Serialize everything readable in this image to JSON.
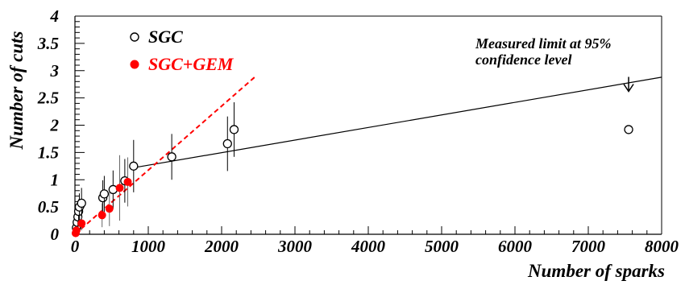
{
  "chart_data": {
    "type": "scatter",
    "xlabel": "Number of sparks",
    "ylabel": "Number of cuts",
    "xlim": [
      0,
      8000
    ],
    "ylim": [
      0,
      4
    ],
    "x_ticks": [
      0,
      1000,
      2000,
      3000,
      4000,
      5000,
      6000,
      7000,
      8000
    ],
    "y_ticks": [
      0,
      0.5,
      1,
      1.5,
      2,
      2.5,
      3,
      3.5,
      4
    ],
    "legend_position": "top-left",
    "series": [
      {
        "name": "SGC",
        "marker": "open-circle",
        "color": "#000000",
        "points": [
          {
            "x": 20,
            "y": 0.12,
            "err": 0.12
          },
          {
            "x": 30,
            "y": 0.22,
            "err": 0.15
          },
          {
            "x": 40,
            "y": 0.32,
            "err": 0.18
          },
          {
            "x": 50,
            "y": 0.42,
            "err": 0.22
          },
          {
            "x": 60,
            "y": 0.5,
            "err": 0.25
          },
          {
            "x": 90,
            "y": 0.57,
            "err": 0.28
          },
          {
            "x": 380,
            "y": 0.67,
            "err": 0.32
          },
          {
            "x": 400,
            "y": 0.74,
            "err": 0.33
          },
          {
            "x": 520,
            "y": 0.82,
            "err": 0.35
          },
          {
            "x": 680,
            "y": 0.98,
            "err": 0.4
          },
          {
            "x": 800,
            "y": 1.25,
            "err": 0.48
          },
          {
            "x": 1320,
            "y": 1.42,
            "err": 0.42
          },
          {
            "x": 2080,
            "y": 1.66,
            "err": 0.5
          },
          {
            "x": 2170,
            "y": 1.92,
            "err": 0.5
          },
          {
            "x": 7550,
            "y": 1.92,
            "err": 0
          }
        ]
      },
      {
        "name": "SGC+GEM",
        "marker": "filled-circle",
        "color": "#ff0000",
        "points": [
          {
            "x": 10,
            "y": 0.02,
            "err": 0.04
          },
          {
            "x": 20,
            "y": 0.07,
            "err": 0.07
          },
          {
            "x": 90,
            "y": 0.2,
            "err": 0.13
          },
          {
            "x": 370,
            "y": 0.35,
            "err": 0.22
          },
          {
            "x": 470,
            "y": 0.47,
            "err": 0.32
          },
          {
            "x": 610,
            "y": 0.85,
            "err": 0.6
          },
          {
            "x": 720,
            "y": 0.96,
            "err": 0.45
          }
        ]
      }
    ],
    "fit_lines": [
      {
        "series": "SGC",
        "style": "solid",
        "color": "#000000",
        "from": [
          800,
          1.22
        ],
        "to": [
          8000,
          2.88
        ]
      },
      {
        "series": "SGC+GEM",
        "style": "dashed",
        "color": "#ff0000",
        "from": [
          0,
          0
        ],
        "to": [
          2450,
          2.88
        ]
      }
    ],
    "annotation": {
      "lines": [
        "Measured limit at 95%",
        "confidence level"
      ],
      "arrow_target": {
        "x": 7550,
        "y": 2.62
      }
    }
  }
}
